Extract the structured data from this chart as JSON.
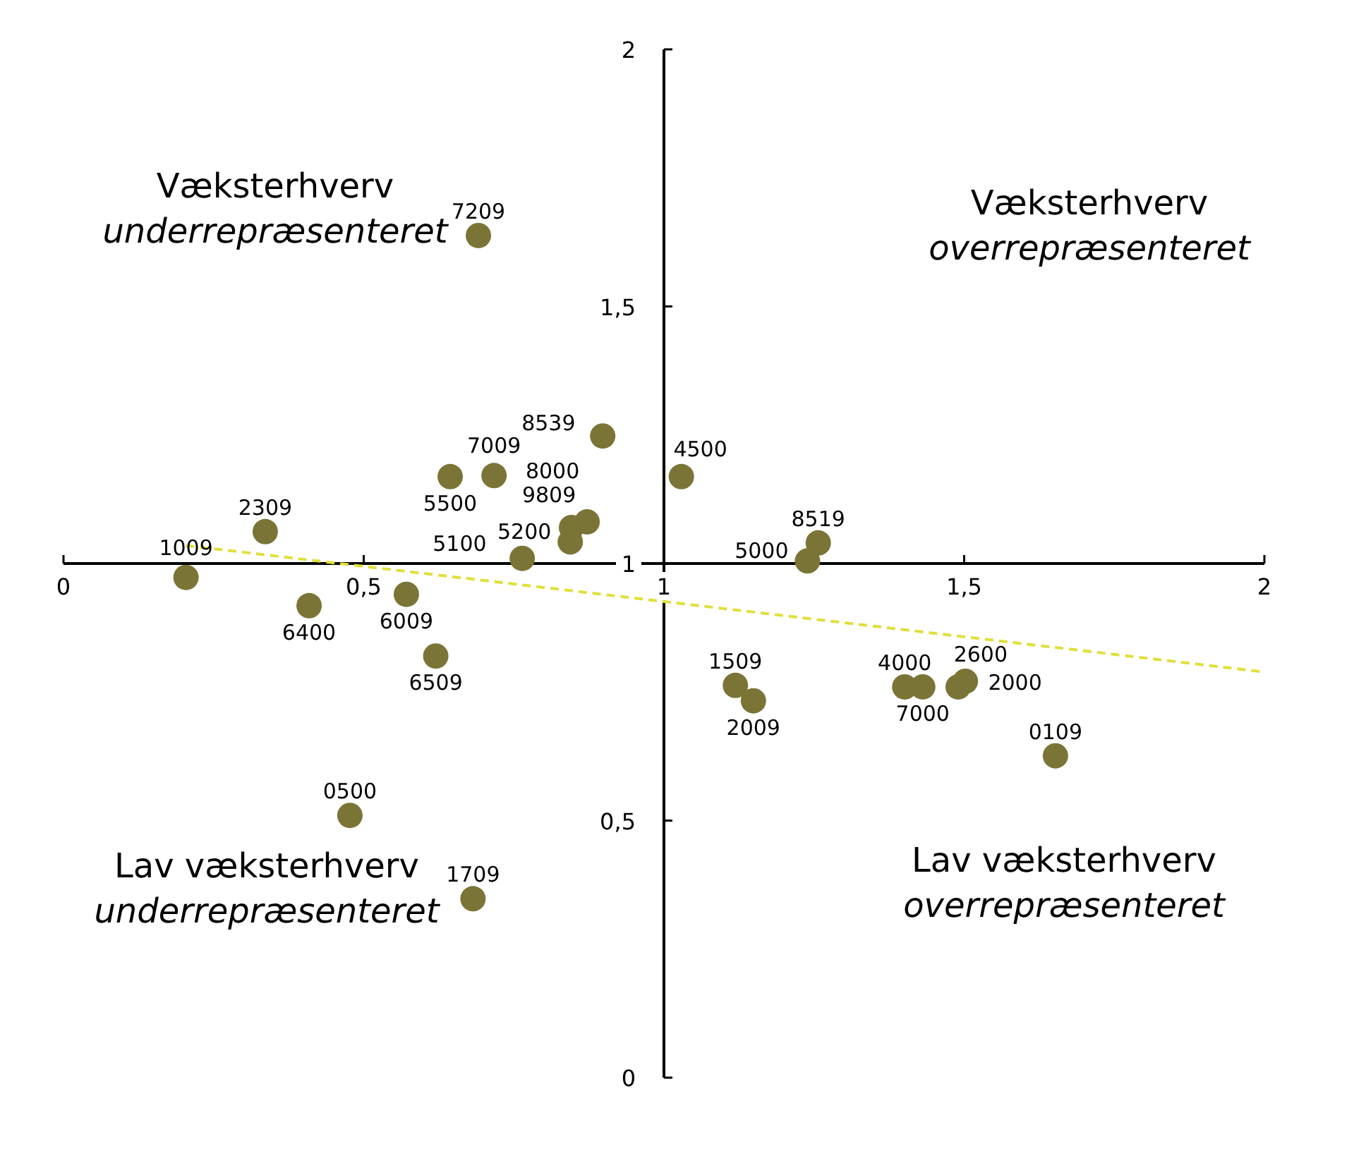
{
  "chart_data": {
    "type": "scatter",
    "xlim": [
      0,
      2
    ],
    "ylim": [
      0,
      2
    ],
    "xticks": [
      0,
      {
        "value": 0.5,
        "label": "0,5"
      },
      1,
      {
        "value": 1.5,
        "label": "1,5"
      },
      2
    ],
    "yticks": [
      0,
      {
        "value": 0.5,
        "label": "0,5"
      },
      1,
      {
        "value": 1.5,
        "label": "1,5"
      },
      2
    ],
    "grid": false,
    "legend": false,
    "marker": "circle",
    "series": [
      {
        "type": "scatter",
        "color": "#7a7536",
        "x": [
          0.204,
          0.336,
          0.409,
          0.571,
          0.62,
          0.644,
          0.717,
          0.691,
          0.764,
          0.844,
          0.846,
          0.872,
          0.898,
          1.029,
          1.239,
          1.257,
          1.119,
          1.149,
          1.401,
          1.431,
          1.49,
          1.502,
          1.652,
          0.477,
          0.682
        ],
        "values": [
          0.973,
          1.062,
          0.918,
          0.94,
          0.82,
          1.169,
          1.171,
          1.638,
          1.01,
          1.042,
          1.07,
          1.081,
          1.248,
          1.169,
          1.005,
          1.04,
          0.763,
          0.733,
          0.76,
          0.76,
          0.76,
          0.771,
          0.626,
          0.51,
          0.348
        ]
      },
      {
        "type": "line",
        "color": "#e0df3a",
        "line_style": "dashed",
        "marker": "none",
        "x": [
          0.204,
          2
        ],
        "values": [
          1.035,
          0.789
        ]
      }
    ],
    "annotations": [
      "Væksterhverv\nunderrepræsenteret",
      "Væksterhverv\noverrepræsenteret",
      "Lav væksterhverv\nunderrepræsenteret",
      "Lav væksterhverv\noverrepræsenteret",
      {
        "text": "1009",
        "x": 0.204,
        "y": 0.973
      },
      {
        "text": "2309",
        "x": 0.336,
        "y": 1.062
      },
      {
        "text": "6400",
        "x": 0.409,
        "y": 0.918
      },
      {
        "text": "6009",
        "x": 0.571,
        "y": 0.94
      },
      {
        "text": "6509",
        "x": 0.62,
        "y": 0.82
      },
      {
        "text": "5500",
        "x": 0.644,
        "y": 1.169
      },
      {
        "text": "7009",
        "x": 0.717,
        "y": 1.171
      },
      {
        "text": "7209",
        "x": 0.691,
        "y": 1.638
      },
      {
        "text": "5100",
        "x": 0.764,
        "y": 1.01
      },
      {
        "text": "5200",
        "x": 0.844,
        "y": 1.042
      },
      {
        "text": "9809",
        "x": 0.846,
        "y": 1.07
      },
      {
        "text": "8000",
        "x": 0.872,
        "y": 1.081
      },
      {
        "text": "8539",
        "x": 0.898,
        "y": 1.248
      },
      {
        "text": "4500",
        "x": 1.029,
        "y": 1.169
      },
      {
        "text": "5000",
        "x": 1.239,
        "y": 1.005
      },
      {
        "text": "8519",
        "x": 1.257,
        "y": 1.04
      },
      {
        "text": "1509",
        "x": 1.119,
        "y": 0.763
      },
      {
        "text": "2009",
        "x": 1.149,
        "y": 0.733
      },
      {
        "text": "4000",
        "x": 1.401,
        "y": 0.76
      },
      {
        "text": "7000",
        "x": 1.431,
        "y": 0.76
      },
      {
        "text": "2600",
        "x": 1.49,
        "y": 0.76
      },
      {
        "text": "2000",
        "x": 1.502,
        "y": 0.771
      },
      {
        "text": "0109",
        "x": 1.652,
        "y": 0.626
      },
      {
        "text": "0500",
        "x": 0.477,
        "y": 0.51
      },
      {
        "text": "1709",
        "x": 0.682,
        "y": 0.348
      }
    ]
  }
}
